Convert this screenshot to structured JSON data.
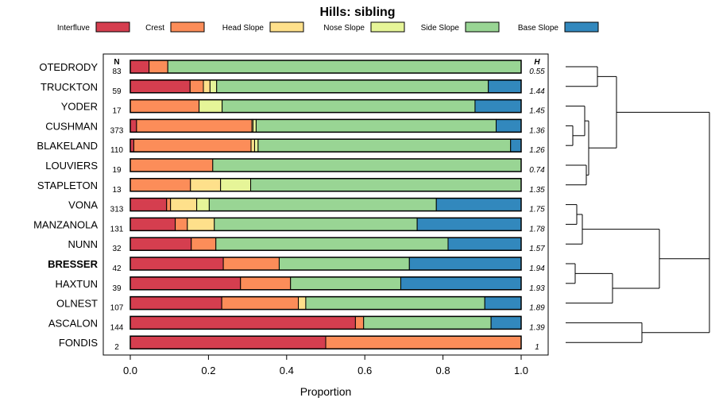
{
  "chart_data": {
    "type": "bar",
    "orientation": "horizontal-stacked",
    "title": "Hills: sibling",
    "xlabel": "Proportion",
    "xlim": [
      0,
      1
    ],
    "xticks": [
      "0.0",
      "0.2",
      "0.4",
      "0.6",
      "0.8",
      "1.0"
    ],
    "n_header": "N",
    "h_header": "H",
    "highlight": "BRESSER",
    "series": [
      {
        "name": "Interfluve",
        "color": "#d53e4f"
      },
      {
        "name": "Crest",
        "color": "#fc8d59"
      },
      {
        "name": "Head Slope",
        "color": "#fee08b"
      },
      {
        "name": "Nose Slope",
        "color": "#e6f598"
      },
      {
        "name": "Side Slope",
        "color": "#99d594"
      },
      {
        "name": "Base Slope",
        "color": "#3288bd"
      }
    ],
    "rows": [
      {
        "name": "OTEDRODY",
        "n": "83",
        "h": "0.55",
        "values": [
          0.048,
          0.048,
          0,
          0,
          0.904,
          0
        ]
      },
      {
        "name": "TRUCKTON",
        "n": "59",
        "h": "1.44",
        "values": [
          0.153,
          0.034,
          0.017,
          0.017,
          0.695,
          0.084
        ]
      },
      {
        "name": "YODER",
        "n": "17",
        "h": "1.45",
        "values": [
          0,
          0.176,
          0,
          0.059,
          0.647,
          0.118
        ]
      },
      {
        "name": "CUSHMAN",
        "n": "373",
        "h": "1.36",
        "values": [
          0.016,
          0.295,
          0.003,
          0.008,
          0.614,
          0.064
        ]
      },
      {
        "name": "BLAKELAND",
        "n": "110",
        "h": "1.26",
        "values": [
          0.009,
          0.3,
          0.009,
          0.009,
          0.646,
          0.027
        ]
      },
      {
        "name": "LOUVIERS",
        "n": "19",
        "h": "0.74",
        "values": [
          0,
          0.211,
          0,
          0,
          0.789,
          0
        ]
      },
      {
        "name": "STAPLETON",
        "n": "13",
        "h": "1.35",
        "values": [
          0,
          0.154,
          0.077,
          0.077,
          0.692,
          0
        ]
      },
      {
        "name": "VONA",
        "n": "313",
        "h": "1.75",
        "values": [
          0.093,
          0.01,
          0.067,
          0.032,
          0.581,
          0.217
        ]
      },
      {
        "name": "MANZANOLA",
        "n": "131",
        "h": "1.78",
        "values": [
          0.115,
          0.031,
          0.069,
          0,
          0.519,
          0.266
        ]
      },
      {
        "name": "NUNN",
        "n": "32",
        "h": "1.57",
        "values": [
          0.156,
          0.063,
          0,
          0,
          0.594,
          0.187
        ]
      },
      {
        "name": "BRESSER",
        "n": "42",
        "h": "1.94",
        "values": [
          0.238,
          0.143,
          0,
          0,
          0.333,
          0.286
        ]
      },
      {
        "name": "HAXTUN",
        "n": "39",
        "h": "1.93",
        "values": [
          0.282,
          0.128,
          0,
          0,
          0.282,
          0.308
        ]
      },
      {
        "name": "OLNEST",
        "n": "107",
        "h": "1.89",
        "values": [
          0.234,
          0.196,
          0.019,
          0,
          0.458,
          0.093
        ]
      },
      {
        "name": "ASCALON",
        "n": "144",
        "h": "1.39",
        "values": [
          0.576,
          0.021,
          0,
          0,
          0.326,
          0.077
        ]
      },
      {
        "name": "FONDIS",
        "n": "2",
        "h": "1",
        "values": [
          0.5,
          0.5,
          0,
          0,
          0,
          0
        ]
      }
    ]
  }
}
